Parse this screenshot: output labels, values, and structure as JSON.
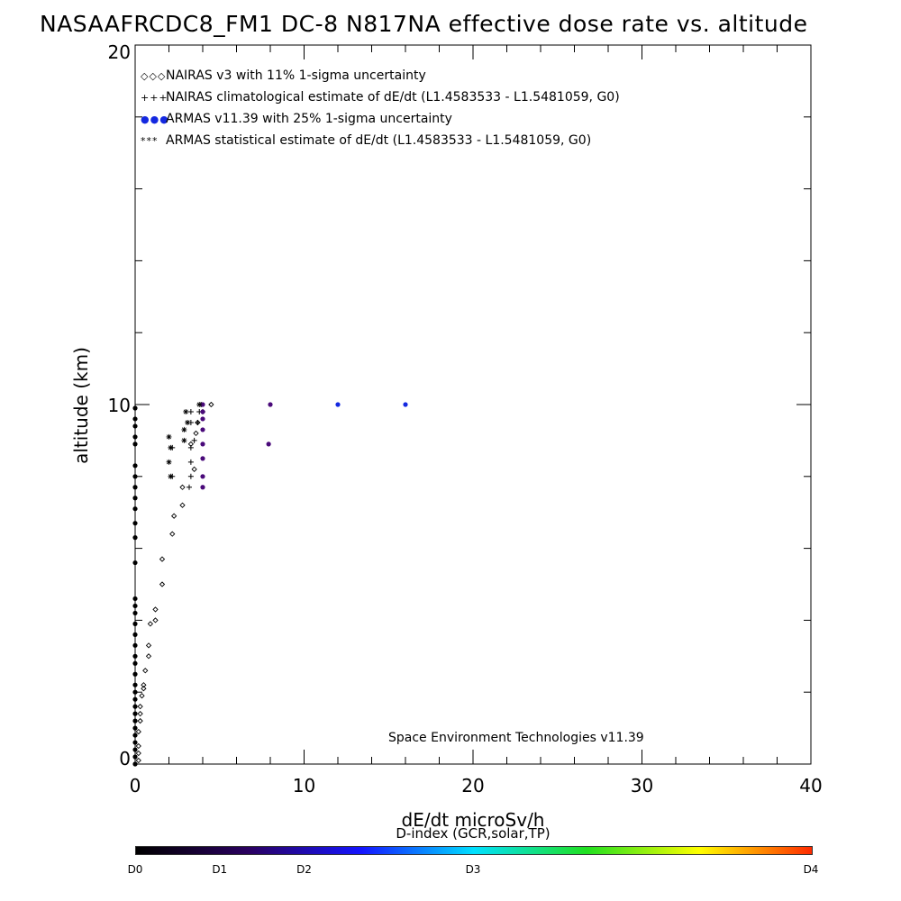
{
  "chart_data": {
    "type": "scatter",
    "title": "NASAAFRCDC8_FM1 DC-8   N817NA effective dose rate vs. altitude",
    "xlabel": "dE/dt microSv/h",
    "ylabel": "altitude (km)",
    "xlim": [
      0,
      40
    ],
    "ylim": [
      0,
      20
    ],
    "x_ticks": [
      "0",
      "10",
      "20",
      "30",
      "40"
    ],
    "y_ticks": [
      "0",
      "10",
      "20"
    ],
    "legend_placement": "top-left",
    "annotation": "Space Environment Technologies v11.39",
    "colorbar": {
      "title": "D-index (GCR,solar,TP)",
      "labels": [
        "D0",
        "D1",
        "D2",
        "D3",
        "D4"
      ],
      "label_positions": [
        0,
        0.125,
        0.25,
        0.5,
        1.0
      ],
      "colors": [
        "#000000",
        "#2a0060",
        "#1414ff",
        "#00e0ff",
        "#20e020",
        "#ffff00",
        "#ff2a00"
      ]
    },
    "series": [
      {
        "name": "NAIRAS v3 with 11% 1-sigma uncertainty",
        "marker": "diamond",
        "legend_symbol": "◇◇◇",
        "color": "#000000",
        "points": [
          [
            0.2,
            0.1
          ],
          [
            0.2,
            0.3
          ],
          [
            0.2,
            0.5
          ],
          [
            0.2,
            0.9
          ],
          [
            0.3,
            1.2
          ],
          [
            0.3,
            1.4
          ],
          [
            0.3,
            1.6
          ],
          [
            0.4,
            1.9
          ],
          [
            0.5,
            2.1
          ],
          [
            0.5,
            2.2
          ],
          [
            0.6,
            2.6
          ],
          [
            0.8,
            3.0
          ],
          [
            0.8,
            3.3
          ],
          [
            0.9,
            3.9
          ],
          [
            1.2,
            4.0
          ],
          [
            1.2,
            4.3
          ],
          [
            1.6,
            5.0
          ],
          [
            1.6,
            5.7
          ],
          [
            2.2,
            6.4
          ],
          [
            2.3,
            6.9
          ],
          [
            2.8,
            7.2
          ],
          [
            2.8,
            7.7
          ],
          [
            3.5,
            8.2
          ],
          [
            3.3,
            8.9
          ],
          [
            3.6,
            9.2
          ],
          [
            3.7,
            9.5
          ],
          [
            4.0,
            9.8
          ],
          [
            4.5,
            10.0
          ]
        ]
      },
      {
        "name": "NAIRAS climatological estimate of dE/dt (L1.4583533 - L1.5481059, G0)",
        "marker": "plus",
        "legend_symbol": "+++",
        "color": "#000000",
        "points": [
          [
            3.2,
            7.7
          ],
          [
            3.3,
            8.0
          ],
          [
            2.2,
            8.0
          ],
          [
            3.3,
            8.4
          ],
          [
            3.3,
            8.8
          ],
          [
            2.2,
            8.8
          ],
          [
            3.5,
            9.0
          ],
          [
            3.3,
            9.5
          ],
          [
            3.7,
            9.5
          ],
          [
            3.3,
            9.8
          ],
          [
            3.8,
            9.8
          ],
          [
            3.9,
            10.0
          ]
        ]
      },
      {
        "name": "ARMAS v11.39 with 25% 1-sigma uncertainty",
        "marker": "dot",
        "legend_symbol": "●●●",
        "color": "#1428e0",
        "points": [
          [
            0.0,
            0.0
          ],
          [
            0.0,
            0.2
          ],
          [
            0.0,
            0.4
          ],
          [
            0.0,
            0.6
          ],
          [
            0.0,
            0.8
          ],
          [
            0.0,
            1.0
          ],
          [
            0.0,
            1.2
          ],
          [
            0.0,
            1.4
          ],
          [
            0.0,
            1.6
          ],
          [
            0.0,
            1.8
          ],
          [
            0.0,
            2.0
          ],
          [
            0.0,
            2.2
          ],
          [
            0.0,
            2.5
          ],
          [
            0.0,
            2.8
          ],
          [
            0.0,
            3.0
          ],
          [
            0.0,
            3.3
          ],
          [
            0.0,
            3.6
          ],
          [
            0.0,
            3.9
          ],
          [
            0.0,
            4.2
          ],
          [
            0.0,
            4.4
          ],
          [
            0.0,
            4.6
          ],
          [
            0.0,
            5.6
          ],
          [
            0.0,
            6.3
          ],
          [
            0.0,
            6.7
          ],
          [
            0.0,
            7.1
          ],
          [
            0.0,
            7.4
          ],
          [
            0.0,
            7.7
          ],
          [
            0.0,
            8.0
          ],
          [
            0.0,
            8.3
          ],
          [
            0.0,
            8.9
          ],
          [
            0.0,
            9.1
          ],
          [
            0.0,
            9.4
          ],
          [
            0.0,
            9.6
          ],
          [
            0.0,
            9.9
          ],
          [
            4.0,
            7.7
          ],
          [
            4.0,
            8.0
          ],
          [
            4.0,
            8.5
          ],
          [
            4.0,
            8.9
          ],
          [
            4.0,
            9.3
          ],
          [
            4.0,
            9.6
          ],
          [
            4.0,
            9.8
          ],
          [
            4.0,
            10.0
          ],
          [
            7.9,
            8.9
          ],
          [
            8.0,
            10.0
          ],
          [
            12.0,
            10.0
          ],
          [
            16.0,
            10.0
          ]
        ]
      },
      {
        "name": "ARMAS statistical estimate of dE/dt (L1.4583533 - L1.5481059, G0)",
        "marker": "asterisk",
        "legend_symbol": "***",
        "color": "#000000",
        "points": [
          [
            2.1,
            8.0
          ],
          [
            2.0,
            8.4
          ],
          [
            2.1,
            8.8
          ],
          [
            2.0,
            9.1
          ],
          [
            2.9,
            9.0
          ],
          [
            2.9,
            9.3
          ],
          [
            3.1,
            9.5
          ],
          [
            3.0,
            9.8
          ],
          [
            3.8,
            10.0
          ]
        ]
      }
    ]
  }
}
